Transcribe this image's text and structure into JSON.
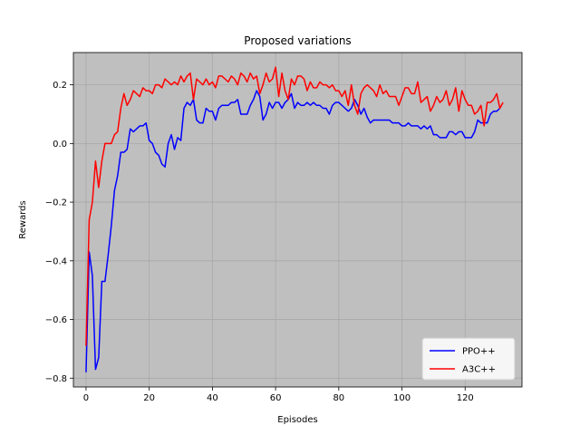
{
  "chart_data": {
    "type": "line",
    "title": "Proposed variations",
    "xlabel": "Episodes",
    "ylabel": "Rewards",
    "xlim": [
      -4,
      138
    ],
    "ylim": [
      -0.83,
      0.31
    ],
    "xticks": [
      0,
      20,
      40,
      60,
      80,
      100,
      120
    ],
    "yticks": [
      -0.8,
      -0.6,
      -0.4,
      -0.2,
      0.0,
      0.2
    ],
    "ytick_labels": [
      "−0.8",
      "−0.6",
      "−0.4",
      "−0.2",
      "0.0",
      "0.2"
    ],
    "grid": true,
    "background": "#bfbfbf",
    "legend_position": "lower-right",
    "series": [
      {
        "name": "PPO++",
        "color": "#0000ff",
        "values": [
          -0.78,
          -0.37,
          -0.45,
          -0.77,
          -0.73,
          -0.47,
          -0.47,
          -0.38,
          -0.28,
          -0.16,
          -0.11,
          -0.03,
          -0.03,
          -0.02,
          0.05,
          0.04,
          0.05,
          0.06,
          0.06,
          0.07,
          0.01,
          0.0,
          -0.03,
          -0.04,
          -0.07,
          -0.08,
          0.0,
          0.03,
          -0.02,
          0.02,
          0.01,
          0.12,
          0.14,
          0.13,
          0.15,
          0.08,
          0.07,
          0.07,
          0.12,
          0.11,
          0.11,
          0.08,
          0.12,
          0.13,
          0.13,
          0.13,
          0.14,
          0.14,
          0.15,
          0.1,
          0.1,
          0.1,
          0.13,
          0.15,
          0.18,
          0.16,
          0.08,
          0.1,
          0.14,
          0.12,
          0.14,
          0.14,
          0.12,
          0.14,
          0.15,
          0.17,
          0.12,
          0.14,
          0.13,
          0.13,
          0.14,
          0.13,
          0.14,
          0.13,
          0.13,
          0.12,
          0.12,
          0.1,
          0.13,
          0.14,
          0.14,
          0.13,
          0.12,
          0.11,
          0.12,
          0.15,
          0.13,
          0.1,
          0.12,
          0.09,
          0.07,
          0.08,
          0.08,
          0.08,
          0.08,
          0.08,
          0.08,
          0.07,
          0.07,
          0.07,
          0.06,
          0.06,
          0.07,
          0.06,
          0.06,
          0.06,
          0.05,
          0.06,
          0.05,
          0.06,
          0.03,
          0.03,
          0.02,
          0.02,
          0.02,
          0.04,
          0.04,
          0.03,
          0.04,
          0.04,
          0.02,
          0.02,
          0.02,
          0.04,
          0.08,
          0.07,
          0.07,
          0.07,
          0.1,
          0.11,
          0.11,
          0.12
        ]
      },
      {
        "name": "A3C++",
        "color": "#ff0000",
        "values": [
          -0.69,
          -0.26,
          -0.2,
          -0.06,
          -0.15,
          -0.06,
          0.0,
          0.0,
          0.0,
          0.03,
          0.04,
          0.12,
          0.17,
          0.13,
          0.15,
          0.18,
          0.17,
          0.16,
          0.19,
          0.18,
          0.18,
          0.17,
          0.2,
          0.2,
          0.19,
          0.22,
          0.21,
          0.2,
          0.21,
          0.2,
          0.23,
          0.21,
          0.23,
          0.24,
          0.15,
          0.22,
          0.21,
          0.2,
          0.22,
          0.2,
          0.21,
          0.19,
          0.23,
          0.23,
          0.22,
          0.21,
          0.23,
          0.22,
          0.2,
          0.24,
          0.23,
          0.21,
          0.24,
          0.22,
          0.23,
          0.17,
          0.2,
          0.24,
          0.21,
          0.22,
          0.26,
          0.16,
          0.24,
          0.18,
          0.15,
          0.22,
          0.2,
          0.23,
          0.23,
          0.22,
          0.18,
          0.21,
          0.19,
          0.19,
          0.21,
          0.2,
          0.2,
          0.19,
          0.2,
          0.18,
          0.18,
          0.16,
          0.18,
          0.13,
          0.2,
          0.13,
          0.1,
          0.17,
          0.19,
          0.2,
          0.19,
          0.18,
          0.16,
          0.2,
          0.17,
          0.18,
          0.16,
          0.16,
          0.16,
          0.13,
          0.16,
          0.19,
          0.19,
          0.17,
          0.17,
          0.21,
          0.14,
          0.15,
          0.16,
          0.11,
          0.13,
          0.16,
          0.14,
          0.15,
          0.18,
          0.13,
          0.15,
          0.19,
          0.11,
          0.18,
          0.15,
          0.13,
          0.13,
          0.1,
          0.11,
          0.13,
          0.06,
          0.14,
          0.14,
          0.15,
          0.17,
          0.12,
          0.14
        ]
      }
    ]
  }
}
